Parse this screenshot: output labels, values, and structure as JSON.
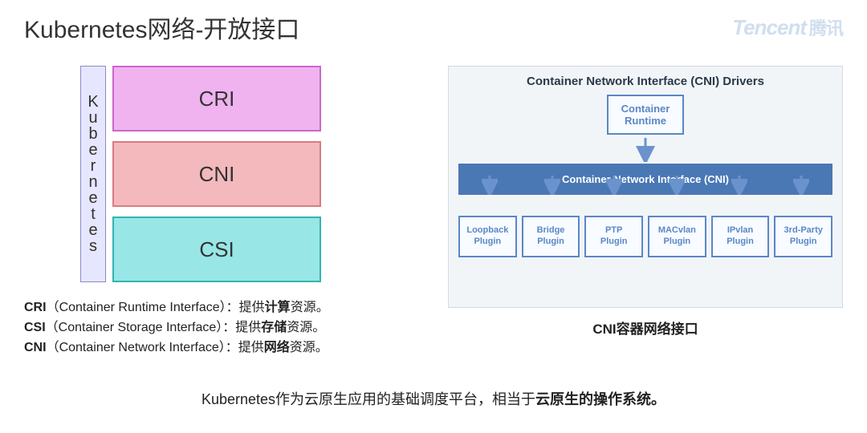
{
  "title": "Kubernetes网络-开放接口",
  "logo": {
    "en": "Tencent",
    "cn": "腾讯"
  },
  "left": {
    "vertical_label": "Kubernetes",
    "vertical_bg": "#e6e6ff",
    "vertical_border": "#8a8acc",
    "boxes": [
      {
        "label": "CRI",
        "bg": "#f0b3f0",
        "border": "#cc66cc"
      },
      {
        "label": "CNI",
        "bg": "#f3b9bd",
        "border": "#d97b83"
      },
      {
        "label": "CSI",
        "bg": "#99e6e6",
        "border": "#33b3b3"
      }
    ]
  },
  "descs": [
    {
      "abbr": "CRI",
      "full": "（Container Runtime Interface）：提供",
      "bold": "计算",
      "tail": "资源。"
    },
    {
      "abbr": "CSI",
      "full": "（Container Storage Interface）：提供",
      "bold": "存储",
      "tail": "资源。"
    },
    {
      "abbr": "CNI",
      "full": "（Container Network Interface）：提供",
      "bold": "网络",
      "tail": "资源。"
    }
  ],
  "right": {
    "bg": "#f2f5f8",
    "border": "#cfd8e2",
    "title": "Container Network Interface (CNI) Drivers",
    "runtime_l1": "Container",
    "runtime_l2": "Runtime",
    "bar": "Container Network Interface (CNI)",
    "bar_bg": "#4a78b5",
    "box_border": "#5a87c8",
    "arrow_color": "#6a93ce",
    "plugins": [
      {
        "l1": "Loopback",
        "l2": "Plugin"
      },
      {
        "l1": "Bridge",
        "l2": "Plugin"
      },
      {
        "l1": "PTP",
        "l2": "Plugin"
      },
      {
        "l1": "MACvlan",
        "l2": "Plugin"
      },
      {
        "l1": "IPvlan",
        "l2": "Plugin"
      },
      {
        "l1": "3rd-Party",
        "l2": "Plugin"
      }
    ],
    "caption": "CNI容器网络接口"
  },
  "footer": {
    "pre": "Kubernetes作为云原生应用的基础调度平台，相当于",
    "bold": "云原生的操作系统。"
  }
}
